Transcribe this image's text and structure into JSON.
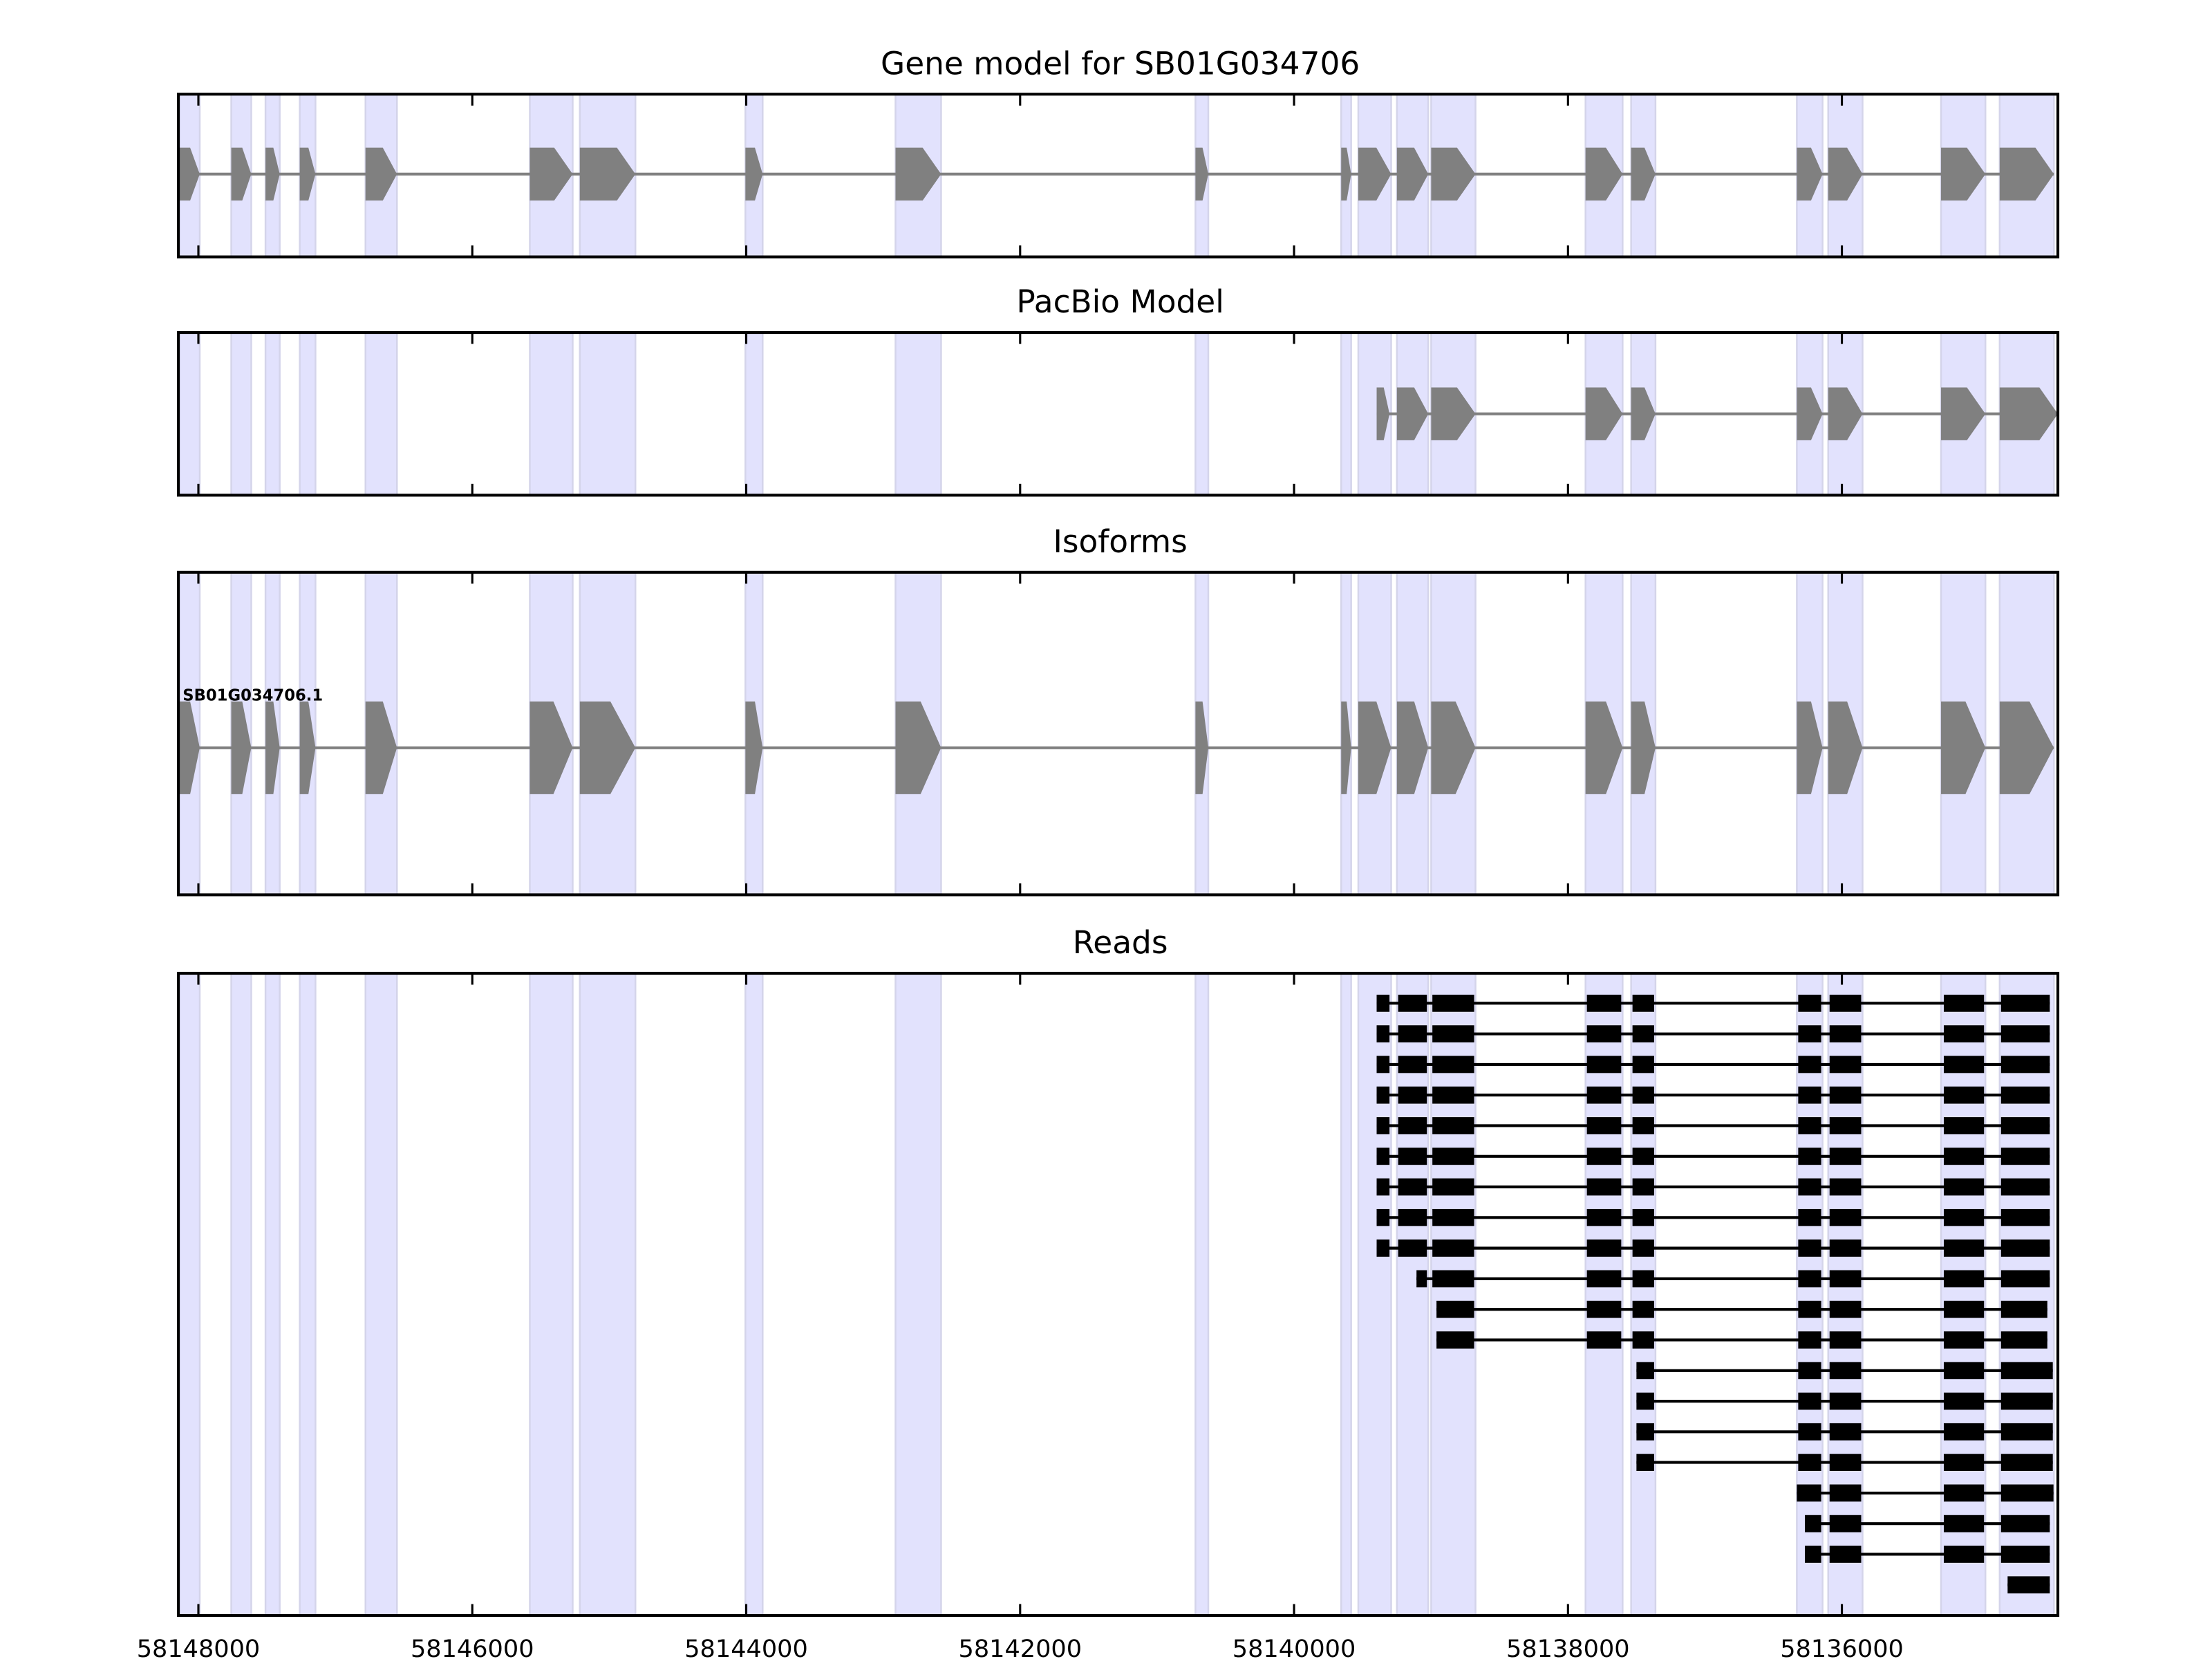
{
  "chart_data": {
    "type": "gene-track",
    "xlim": [
      58148146,
      58134423
    ],
    "x_ticks": [
      58148000,
      58146000,
      58144000,
      58142000,
      58140000,
      58138000,
      58136000
    ],
    "x_tick_labels": [
      "58148000",
      "58146000",
      "58144000",
      "58142000",
      "58140000",
      "58138000",
      "58136000"
    ],
    "colors": {
      "band": "#e2e2fd",
      "band_edge": "#d4d4ea",
      "gene": "#808080",
      "read": "#000000"
    },
    "gene_exons": [
      [
        58148146,
        58147990
      ],
      [
        58147760,
        58147614
      ],
      [
        58147510,
        58147406
      ],
      [
        58147260,
        58147145
      ],
      [
        58146780,
        58146550
      ],
      [
        58145580,
        58145267
      ],
      [
        58145215,
        58144809
      ],
      [
        58144006,
        58143880
      ],
      [
        58142910,
        58142577
      ],
      [
        58140720,
        58140626
      ],
      [
        58139656,
        58139583
      ],
      [
        58139531,
        58139291
      ],
      [
        58139249,
        58139020
      ],
      [
        58138999,
        58138675
      ],
      [
        58137872,
        58137601
      ],
      [
        58137539,
        58137361
      ],
      [
        58136329,
        58136141
      ],
      [
        58136100,
        58135849
      ],
      [
        58135276,
        58134952
      ],
      [
        58134848,
        58134452
      ]
    ],
    "panels": [
      {
        "title": "Gene model for SB01G034706"
      },
      {
        "title": "PacBio Model"
      },
      {
        "title": "Isoforms",
        "isoform_label": "SB01G034706.1"
      },
      {
        "title": "Reads"
      }
    ],
    "pacbio_exons": [
      [
        58139397,
        58139303
      ],
      [
        58139249,
        58139020
      ],
      [
        58138999,
        58138675
      ],
      [
        58137872,
        58137601
      ],
      [
        58137539,
        58137361
      ],
      [
        58136329,
        58136141
      ],
      [
        58136100,
        58135849
      ],
      [
        58135276,
        58134952
      ],
      [
        58134848,
        58134423
      ]
    ],
    "reads": [
      {
        "count": 9,
        "exons": [
          [
            58139397,
            58139303
          ],
          [
            58139240,
            58139030
          ],
          [
            58138990,
            58138685
          ],
          [
            58137862,
            58137611
          ],
          [
            58137529,
            58137371
          ],
          [
            58136319,
            58136151
          ],
          [
            58136090,
            58135859
          ],
          [
            58135256,
            58134962
          ],
          [
            58134838,
            58134482
          ]
        ]
      },
      {
        "count": 1,
        "exons": [
          [
            58139106,
            58139030
          ],
          [
            58138990,
            58138685
          ],
          [
            58137862,
            58137611
          ],
          [
            58137529,
            58137371
          ],
          [
            58136319,
            58136151
          ],
          [
            58136090,
            58135859
          ],
          [
            58135256,
            58134962
          ],
          [
            58134838,
            58134482
          ]
        ]
      },
      {
        "count": 2,
        "exons": [
          [
            58138960,
            58138685
          ],
          [
            58137862,
            58137611
          ],
          [
            58137529,
            58137371
          ],
          [
            58136319,
            58136151
          ],
          [
            58136090,
            58135859
          ],
          [
            58135256,
            58134962
          ],
          [
            58134838,
            58134500
          ]
        ]
      },
      {
        "count": 4,
        "exons": [
          [
            58137500,
            58137371
          ],
          [
            58136319,
            58136151
          ],
          [
            58136090,
            58135859
          ],
          [
            58135256,
            58134962
          ],
          [
            58134838,
            58134460
          ]
        ]
      },
      {
        "count": 1,
        "exons": [
          [
            58136329,
            58136151
          ],
          [
            58136090,
            58135859
          ],
          [
            58135256,
            58134962
          ],
          [
            58134838,
            58134455
          ]
        ]
      },
      {
        "count": 2,
        "exons": [
          [
            58136270,
            58136151
          ],
          [
            58136090,
            58135859
          ],
          [
            58135256,
            58134962
          ],
          [
            58134838,
            58134482
          ]
        ]
      },
      {
        "count": 1,
        "exons": [
          [
            58134790,
            58134482
          ]
        ]
      }
    ]
  }
}
